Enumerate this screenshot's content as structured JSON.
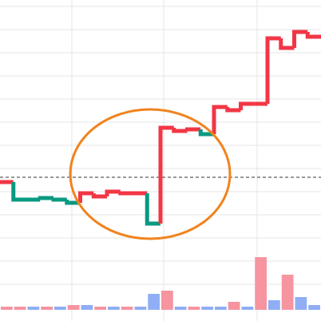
{
  "chart_data": {
    "type": "step",
    "x": [
      0,
      1,
      2,
      3,
      4,
      5,
      6,
      7,
      8,
      9,
      10,
      11,
      12,
      13,
      14,
      15,
      16,
      17,
      18,
      19,
      20,
      21,
      22,
      23
    ],
    "xlim": [
      0,
      24
    ],
    "ylim": [
      0,
      402
    ],
    "baseline": 180,
    "series": [
      {
        "values": [
          174,
          152,
          152,
          154,
          152,
          148,
          160,
          156,
          162,
          160,
          160,
          122,
          242,
          238,
          240,
          234,
          268,
          264,
          272,
          272,
          354,
          342,
          362,
          356
        ],
        "colors": [
          "#f23645",
          "#089981",
          "#089981",
          "#089981",
          "#089981",
          "#089981",
          "#f23645",
          "#f23645",
          "#f23645",
          "#f23645",
          "#f23645",
          "#089981",
          "#f23645",
          "#f23645",
          "#f23645",
          "#089981",
          "#f23645",
          "#f23645",
          "#f23645",
          "#f23645",
          "#f23645",
          "#f23645",
          "#f23645",
          "#f23645"
        ]
      }
    ],
    "volume": {
      "values": [
        4,
        4,
        4,
        4,
        4,
        6,
        6,
        4,
        4,
        4,
        4,
        20,
        24,
        4,
        4,
        4,
        4,
        10,
        4,
        66,
        12,
        44,
        16,
        6
      ],
      "colors": [
        "#f6949f",
        "#f6949f",
        "#8faef5",
        "#f6949f",
        "#8faef5",
        "#f6949f",
        "#8faef5",
        "#f6949f",
        "#8faef5",
        "#f6949f",
        "#8faef5",
        "#8faef5",
        "#f6949f",
        "#8faef5",
        "#f6949f",
        "#8faef5",
        "#8faef5",
        "#f6949f",
        "#8faef5",
        "#f6949f",
        "#8faef5",
        "#f6949f",
        "#8faef5",
        "#8faef5"
      ],
      "ylim": [
        0,
        200
      ]
    }
  }
}
